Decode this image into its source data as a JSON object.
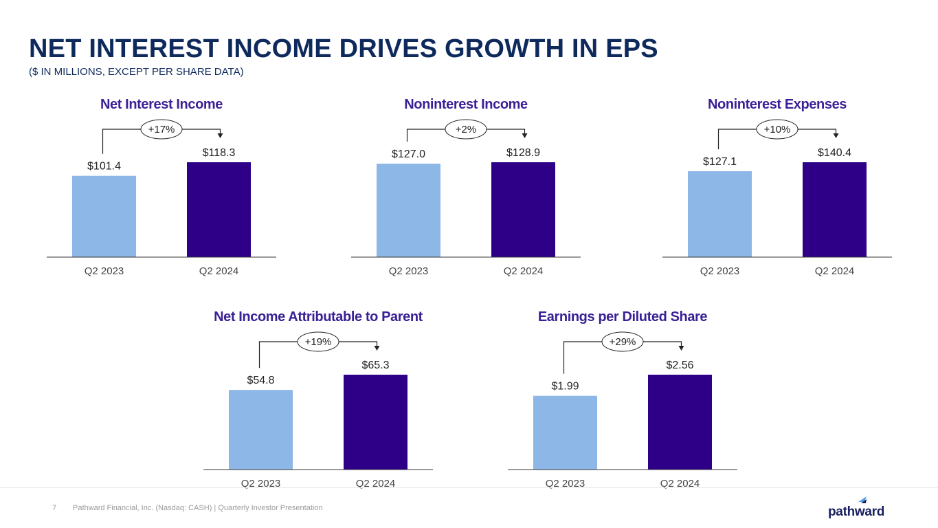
{
  "page": {
    "title": "NET INTEREST INCOME DRIVES GROWTH IN EPS",
    "subtitle": "($ IN MILLIONS, EXCEPT PER SHARE DATA)"
  },
  "colors": {
    "prior": "#8cb7e6",
    "current": "#2e0088",
    "title_text": "#0e2a5c",
    "chart_title": "#3a2096"
  },
  "chart_data": [
    {
      "id": "nii",
      "type": "bar",
      "title": "Net Interest Income",
      "categories": [
        "Q2 2023",
        "Q2 2024"
      ],
      "values": [
        101.4,
        118.3
      ],
      "value_labels": [
        "$101.4",
        "$118.3"
      ],
      "change": "+17%"
    },
    {
      "id": "noni",
      "type": "bar",
      "title": "Noninterest Income",
      "categories": [
        "Q2 2023",
        "Q2 2024"
      ],
      "values": [
        127.0,
        128.9
      ],
      "value_labels": [
        "$127.0",
        "$128.9"
      ],
      "change": "+2%"
    },
    {
      "id": "none",
      "type": "bar",
      "title": "Noninterest Expenses",
      "categories": [
        "Q2 2023",
        "Q2 2024"
      ],
      "values": [
        127.1,
        140.4
      ],
      "value_labels": [
        "$127.1",
        "$140.4"
      ],
      "change": "+10%"
    },
    {
      "id": "net",
      "type": "bar",
      "title": "Net Income Attributable to Parent",
      "categories": [
        "Q2 2023",
        "Q2 2024"
      ],
      "values": [
        54.8,
        65.3
      ],
      "value_labels": [
        "$54.8",
        "$65.3"
      ],
      "change": "+19%"
    },
    {
      "id": "eps",
      "type": "bar",
      "title": "Earnings per Diluted Share",
      "categories": [
        "Q2 2023",
        "Q2 2024"
      ],
      "values": [
        1.99,
        2.56
      ],
      "value_labels": [
        "$1.99",
        "$2.56"
      ],
      "change": "+29%"
    }
  ],
  "footer": {
    "page_number": "7",
    "text": "Pathward Financial, Inc. (Nasdaq: CASH) | Quarterly Investor Presentation",
    "logo_text": "pathward"
  }
}
